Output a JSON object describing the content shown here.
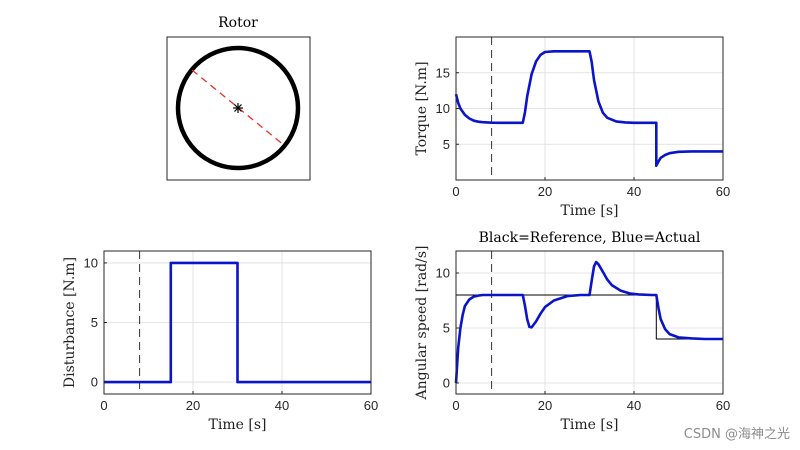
{
  "watermark": "CSDN @海神之光",
  "rotor": {
    "title": "Rotor",
    "colors": {
      "rim": "#000000",
      "indicator": "#e8302a",
      "hub": "#000000"
    }
  },
  "chart_data": [
    {
      "id": "torque",
      "type": "line",
      "title": "",
      "xlabel": "Time [s]",
      "ylabel": "Torque [N.m]",
      "xlim": [
        0,
        60
      ],
      "ylim": [
        0,
        20
      ],
      "xticks": [
        0,
        20,
        40,
        60
      ],
      "yticks": [
        5,
        10,
        15
      ],
      "grid": true,
      "vline": 8,
      "series": [
        {
          "color": "#0a14c8",
          "width": 2.6,
          "x": [
            0,
            0.5,
            1,
            2,
            3,
            4,
            5,
            6,
            8,
            10,
            12,
            15,
            15.5,
            16,
            17,
            18,
            19,
            20,
            22,
            25,
            28,
            30,
            30.5,
            31,
            32,
            33,
            34,
            36,
            38,
            40,
            45,
            45,
            45.5,
            46,
            47,
            48,
            50,
            53,
            56,
            60
          ],
          "y": [
            12,
            10.8,
            10,
            9.1,
            8.6,
            8.3,
            8.15,
            8.08,
            8.02,
            8,
            8,
            8,
            9.5,
            11.7,
            14.8,
            16.6,
            17.5,
            17.9,
            18,
            18,
            18,
            18,
            16.5,
            14,
            11,
            9.4,
            8.7,
            8.2,
            8.05,
            8,
            8,
            2,
            2.6,
            3.1,
            3.5,
            3.75,
            3.95,
            4,
            4,
            4
          ]
        }
      ]
    },
    {
      "id": "disturbance",
      "type": "line",
      "title": "",
      "xlabel": "Time [s]",
      "ylabel": "Disturbance [N.m]",
      "xlim": [
        0,
        60
      ],
      "ylim": [
        -1,
        11
      ],
      "xticks": [
        0,
        20,
        40,
        60
      ],
      "yticks": [
        0,
        5,
        10
      ],
      "grid": true,
      "vline": 8,
      "series": [
        {
          "color": "#0a14c8",
          "width": 2.6,
          "x": [
            0,
            15,
            15,
            30,
            30,
            60
          ],
          "y": [
            0,
            0,
            10,
            10,
            0,
            0
          ]
        }
      ]
    },
    {
      "id": "speed",
      "type": "line",
      "title": "Black=Reference, Blue=Actual",
      "xlabel": "Time [s]",
      "ylabel": "Angular speed [rad/s]",
      "xlim": [
        0,
        60
      ],
      "ylim": [
        -1,
        12
      ],
      "xticks": [
        0,
        20,
        40,
        60
      ],
      "yticks": [
        0,
        5,
        10
      ],
      "grid": true,
      "vline": 8,
      "series": [
        {
          "name": "Reference",
          "color": "#000000",
          "width": 1,
          "x": [
            0,
            45,
            45,
            60
          ],
          "y": [
            8,
            8,
            4,
            4
          ]
        },
        {
          "name": "Actual",
          "color": "#0a14c8",
          "width": 2.6,
          "x": [
            0,
            0.5,
            1,
            1.5,
            2,
            3,
            4,
            5,
            6,
            7,
            8,
            10,
            15,
            15.5,
            16,
            16.5,
            17,
            18,
            19,
            20,
            22,
            25,
            28,
            30,
            30.5,
            31,
            31.5,
            32,
            33,
            34,
            35,
            37,
            39,
            41,
            44,
            45,
            45.5,
            46,
            47,
            48,
            50,
            53,
            56,
            60
          ],
          "y": [
            0,
            3.2,
            5,
            6.2,
            7,
            7.6,
            7.85,
            7.95,
            8,
            8,
            8,
            8,
            8,
            7,
            5.8,
            5.1,
            5.05,
            5.6,
            6.3,
            6.9,
            7.5,
            7.9,
            8,
            8,
            9.3,
            10.6,
            11,
            10.8,
            10.1,
            9.4,
            8.9,
            8.4,
            8.15,
            8.05,
            8,
            8,
            6.8,
            5.8,
            4.9,
            4.45,
            4.15,
            4.05,
            4,
            4
          ]
        }
      ]
    }
  ]
}
